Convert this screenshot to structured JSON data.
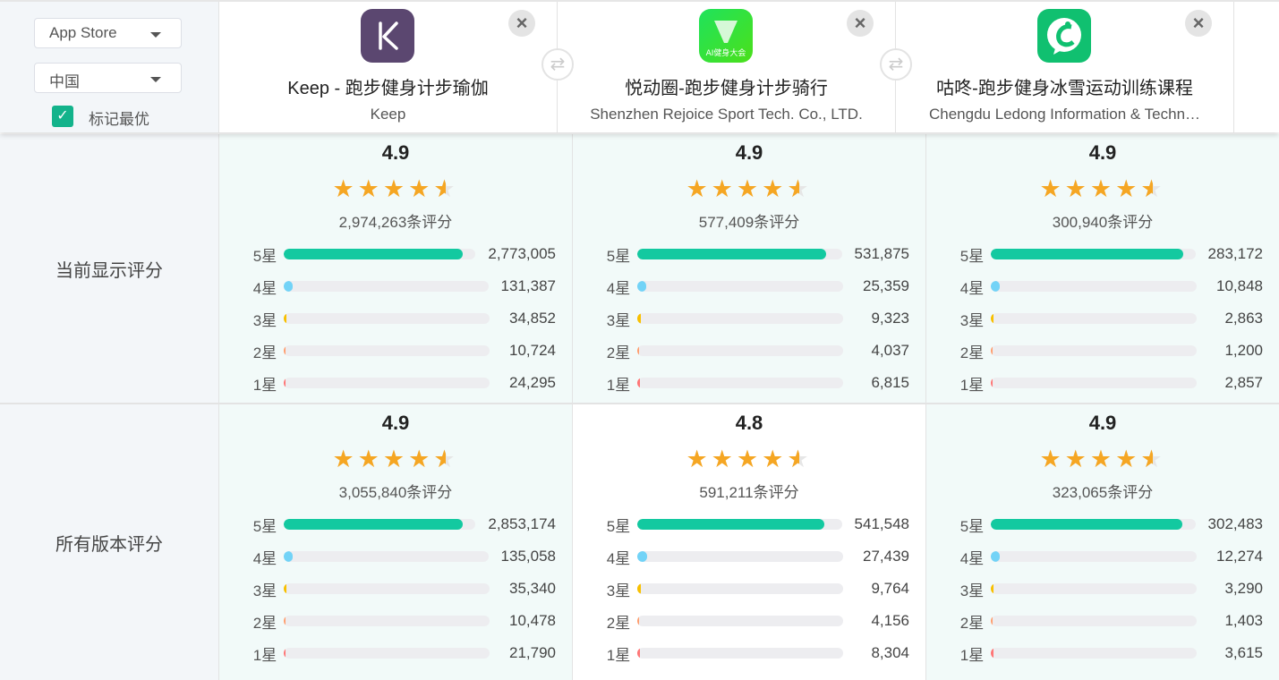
{
  "controls": {
    "store": "App Store",
    "country": "中国",
    "mark_best_label": "标记最优",
    "mark_best_checked": true
  },
  "apps": [
    {
      "name": "Keep - 跑步健身计步瑜伽",
      "developer": "Keep",
      "icon": "keep-k-logo",
      "icon_color": "#5b4770"
    },
    {
      "name": "悦动圈-跑步健身计步骑行",
      "developer": "Shenzhen Rejoice Sport Tech. Co., LTD.",
      "icon": "yuedongquan-logo",
      "icon_text": "AI健身大会",
      "icon_color": "#2ee046"
    },
    {
      "name": "咕咚-跑步健身冰雪运动训练课程",
      "developer": "Chengdu Ledong Information & Techn…",
      "icon": "codoon-logo",
      "icon_color": "#10c070"
    }
  ],
  "row_labels": [
    "当前显示评分",
    "所有版本评分"
  ],
  "star_labels": [
    "5星",
    "4星",
    "3星",
    "2星",
    "1星"
  ],
  "bar_colors": [
    "#13c9a0",
    "#72d3f7",
    "#f8c000",
    "#ff9f70",
    "#ff7676"
  ],
  "ratings": [
    [
      {
        "score": "4.9",
        "stars": 4.5,
        "count": "2,974,263条评分",
        "dist": [
          "2,773,005",
          "131,387",
          "34,852",
          "10,724",
          "24,295"
        ]
      },
      {
        "score": "4.9",
        "stars": 4.5,
        "count": "577,409条评分",
        "dist": [
          "531,875",
          "25,359",
          "9,323",
          "4,037",
          "6,815"
        ]
      },
      {
        "score": "4.9",
        "stars": 4.5,
        "count": "300,940条评分",
        "dist": [
          "283,172",
          "10,848",
          "2,863",
          "1,200",
          "2,857"
        ]
      }
    ],
    [
      {
        "score": "4.9",
        "stars": 4.5,
        "count": "3,055,840条评分",
        "dist": [
          "2,853,174",
          "135,058",
          "35,340",
          "10,478",
          "21,790"
        ]
      },
      {
        "score": "4.8",
        "stars": 4.5,
        "count": "591,211条评分",
        "dist": [
          "541,548",
          "27,439",
          "9,764",
          "4,156",
          "8,304"
        ]
      },
      {
        "score": "4.9",
        "stars": 4.5,
        "count": "323,065条评分",
        "dist": [
          "302,483",
          "12,274",
          "3,290",
          "1,403",
          "3,615"
        ]
      }
    ]
  ]
}
